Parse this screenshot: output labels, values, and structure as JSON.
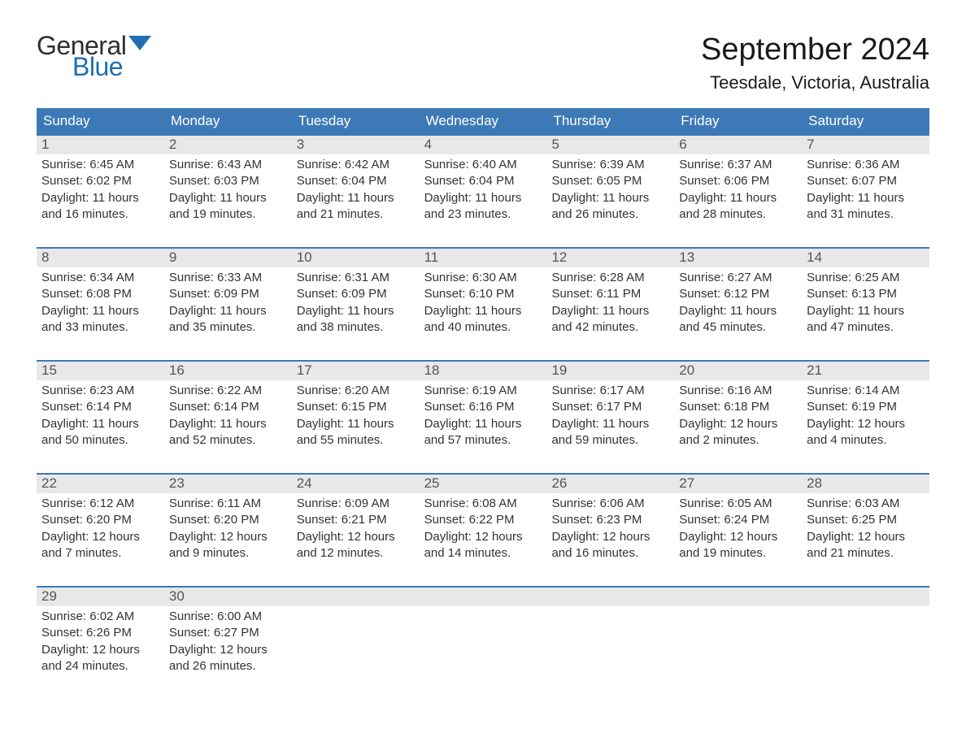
{
  "brand": {
    "general": "General",
    "blue": "Blue",
    "flag_color": "#1f6fb2"
  },
  "title": {
    "month": "September 2024",
    "location": "Teesdale, Victoria, Australia"
  },
  "colors": {
    "header_bg": "#3d79b6",
    "header_text": "#ffffff",
    "week_border": "#3d79b6",
    "daynum_bg": "#e8e8e8",
    "body_text": "#333333",
    "page_bg": "#ffffff"
  },
  "typography": {
    "month_title_fontsize": 38,
    "location_fontsize": 22,
    "dow_fontsize": 17,
    "daynum_fontsize": 17,
    "body_fontsize": 15,
    "logo_fontsize": 32
  },
  "calendar": {
    "type": "table",
    "days_of_week": [
      "Sunday",
      "Monday",
      "Tuesday",
      "Wednesday",
      "Thursday",
      "Friday",
      "Saturday"
    ],
    "weeks": [
      [
        {
          "num": "1",
          "sunrise": "Sunrise: 6:45 AM",
          "sunset": "Sunset: 6:02 PM",
          "day1": "Daylight: 11 hours",
          "day2": "and 16 minutes."
        },
        {
          "num": "2",
          "sunrise": "Sunrise: 6:43 AM",
          "sunset": "Sunset: 6:03 PM",
          "day1": "Daylight: 11 hours",
          "day2": "and 19 minutes."
        },
        {
          "num": "3",
          "sunrise": "Sunrise: 6:42 AM",
          "sunset": "Sunset: 6:04 PM",
          "day1": "Daylight: 11 hours",
          "day2": "and 21 minutes."
        },
        {
          "num": "4",
          "sunrise": "Sunrise: 6:40 AM",
          "sunset": "Sunset: 6:04 PM",
          "day1": "Daylight: 11 hours",
          "day2": "and 23 minutes."
        },
        {
          "num": "5",
          "sunrise": "Sunrise: 6:39 AM",
          "sunset": "Sunset: 6:05 PM",
          "day1": "Daylight: 11 hours",
          "day2": "and 26 minutes."
        },
        {
          "num": "6",
          "sunrise": "Sunrise: 6:37 AM",
          "sunset": "Sunset: 6:06 PM",
          "day1": "Daylight: 11 hours",
          "day2": "and 28 minutes."
        },
        {
          "num": "7",
          "sunrise": "Sunrise: 6:36 AM",
          "sunset": "Sunset: 6:07 PM",
          "day1": "Daylight: 11 hours",
          "day2": "and 31 minutes."
        }
      ],
      [
        {
          "num": "8",
          "sunrise": "Sunrise: 6:34 AM",
          "sunset": "Sunset: 6:08 PM",
          "day1": "Daylight: 11 hours",
          "day2": "and 33 minutes."
        },
        {
          "num": "9",
          "sunrise": "Sunrise: 6:33 AM",
          "sunset": "Sunset: 6:09 PM",
          "day1": "Daylight: 11 hours",
          "day2": "and 35 minutes."
        },
        {
          "num": "10",
          "sunrise": "Sunrise: 6:31 AM",
          "sunset": "Sunset: 6:09 PM",
          "day1": "Daylight: 11 hours",
          "day2": "and 38 minutes."
        },
        {
          "num": "11",
          "sunrise": "Sunrise: 6:30 AM",
          "sunset": "Sunset: 6:10 PM",
          "day1": "Daylight: 11 hours",
          "day2": "and 40 minutes."
        },
        {
          "num": "12",
          "sunrise": "Sunrise: 6:28 AM",
          "sunset": "Sunset: 6:11 PM",
          "day1": "Daylight: 11 hours",
          "day2": "and 42 minutes."
        },
        {
          "num": "13",
          "sunrise": "Sunrise: 6:27 AM",
          "sunset": "Sunset: 6:12 PM",
          "day1": "Daylight: 11 hours",
          "day2": "and 45 minutes."
        },
        {
          "num": "14",
          "sunrise": "Sunrise: 6:25 AM",
          "sunset": "Sunset: 6:13 PM",
          "day1": "Daylight: 11 hours",
          "day2": "and 47 minutes."
        }
      ],
      [
        {
          "num": "15",
          "sunrise": "Sunrise: 6:23 AM",
          "sunset": "Sunset: 6:14 PM",
          "day1": "Daylight: 11 hours",
          "day2": "and 50 minutes."
        },
        {
          "num": "16",
          "sunrise": "Sunrise: 6:22 AM",
          "sunset": "Sunset: 6:14 PM",
          "day1": "Daylight: 11 hours",
          "day2": "and 52 minutes."
        },
        {
          "num": "17",
          "sunrise": "Sunrise: 6:20 AM",
          "sunset": "Sunset: 6:15 PM",
          "day1": "Daylight: 11 hours",
          "day2": "and 55 minutes."
        },
        {
          "num": "18",
          "sunrise": "Sunrise: 6:19 AM",
          "sunset": "Sunset: 6:16 PM",
          "day1": "Daylight: 11 hours",
          "day2": "and 57 minutes."
        },
        {
          "num": "19",
          "sunrise": "Sunrise: 6:17 AM",
          "sunset": "Sunset: 6:17 PM",
          "day1": "Daylight: 11 hours",
          "day2": "and 59 minutes."
        },
        {
          "num": "20",
          "sunrise": "Sunrise: 6:16 AM",
          "sunset": "Sunset: 6:18 PM",
          "day1": "Daylight: 12 hours",
          "day2": "and 2 minutes."
        },
        {
          "num": "21",
          "sunrise": "Sunrise: 6:14 AM",
          "sunset": "Sunset: 6:19 PM",
          "day1": "Daylight: 12 hours",
          "day2": "and 4 minutes."
        }
      ],
      [
        {
          "num": "22",
          "sunrise": "Sunrise: 6:12 AM",
          "sunset": "Sunset: 6:20 PM",
          "day1": "Daylight: 12 hours",
          "day2": "and 7 minutes."
        },
        {
          "num": "23",
          "sunrise": "Sunrise: 6:11 AM",
          "sunset": "Sunset: 6:20 PM",
          "day1": "Daylight: 12 hours",
          "day2": "and 9 minutes."
        },
        {
          "num": "24",
          "sunrise": "Sunrise: 6:09 AM",
          "sunset": "Sunset: 6:21 PM",
          "day1": "Daylight: 12 hours",
          "day2": "and 12 minutes."
        },
        {
          "num": "25",
          "sunrise": "Sunrise: 6:08 AM",
          "sunset": "Sunset: 6:22 PM",
          "day1": "Daylight: 12 hours",
          "day2": "and 14 minutes."
        },
        {
          "num": "26",
          "sunrise": "Sunrise: 6:06 AM",
          "sunset": "Sunset: 6:23 PM",
          "day1": "Daylight: 12 hours",
          "day2": "and 16 minutes."
        },
        {
          "num": "27",
          "sunrise": "Sunrise: 6:05 AM",
          "sunset": "Sunset: 6:24 PM",
          "day1": "Daylight: 12 hours",
          "day2": "and 19 minutes."
        },
        {
          "num": "28",
          "sunrise": "Sunrise: 6:03 AM",
          "sunset": "Sunset: 6:25 PM",
          "day1": "Daylight: 12 hours",
          "day2": "and 21 minutes."
        }
      ],
      [
        {
          "num": "29",
          "sunrise": "Sunrise: 6:02 AM",
          "sunset": "Sunset: 6:26 PM",
          "day1": "Daylight: 12 hours",
          "day2": "and 24 minutes."
        },
        {
          "num": "30",
          "sunrise": "Sunrise: 6:00 AM",
          "sunset": "Sunset: 6:27 PM",
          "day1": "Daylight: 12 hours",
          "day2": "and 26 minutes."
        },
        {
          "num": "",
          "empty": true
        },
        {
          "num": "",
          "empty": true
        },
        {
          "num": "",
          "empty": true
        },
        {
          "num": "",
          "empty": true
        },
        {
          "num": "",
          "empty": true
        }
      ]
    ]
  }
}
